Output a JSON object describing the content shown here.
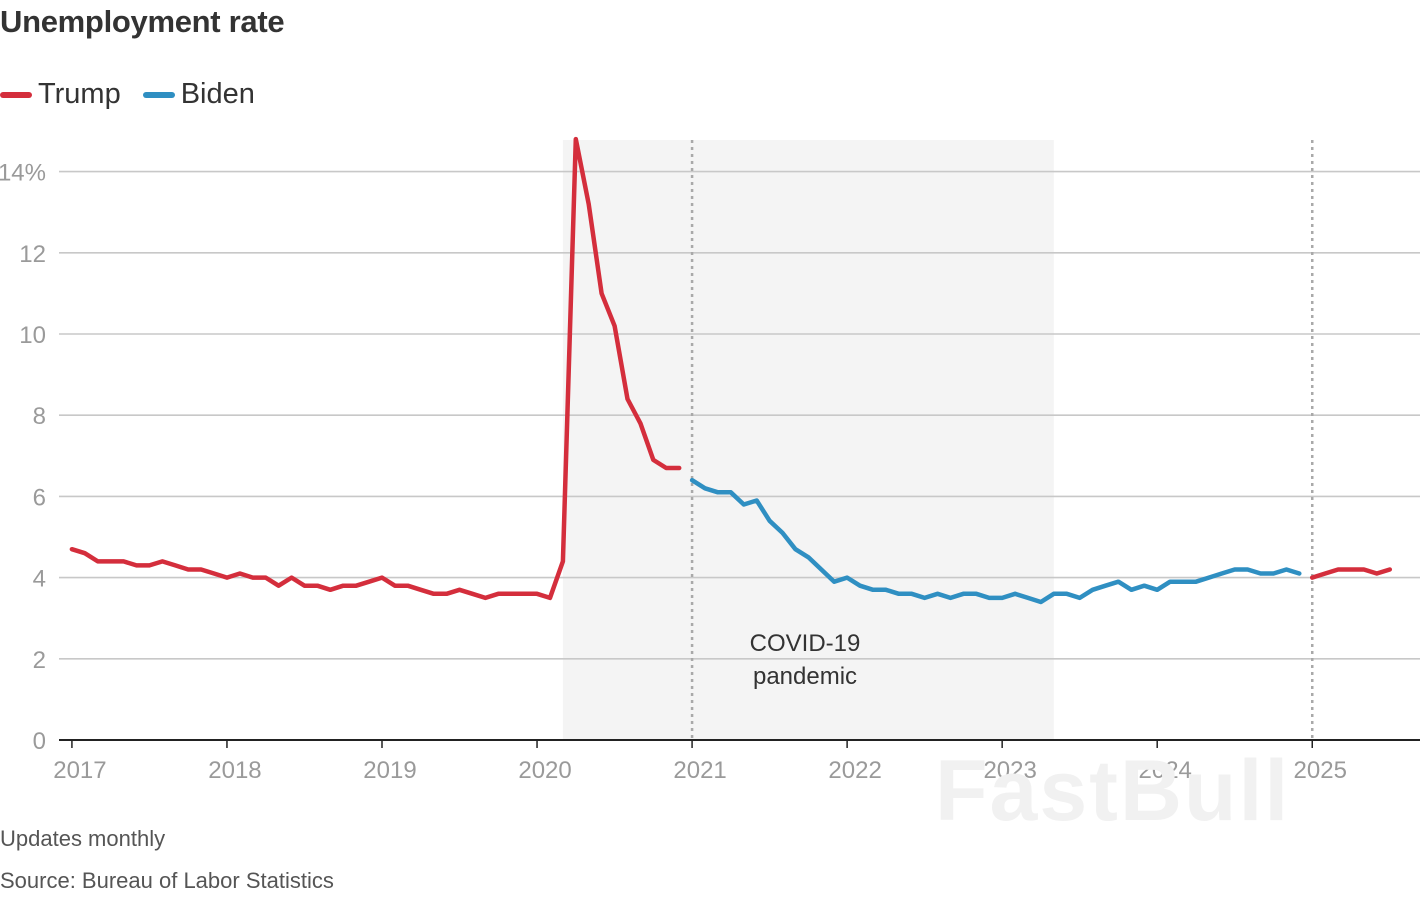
{
  "chart_data": {
    "type": "line",
    "title": "Unemployment rate",
    "xlabel": "",
    "ylabel": "",
    "ylim": [
      0,
      14.8
    ],
    "y_ticks": [
      0,
      2,
      4,
      6,
      8,
      10,
      12,
      14
    ],
    "y_tick_labels": [
      "0",
      "2",
      "4",
      "6",
      "8",
      "10",
      "12",
      "14%"
    ],
    "x_ticks": [
      2017,
      2018,
      2019,
      2020,
      2021,
      2022,
      2023,
      2024,
      2025
    ],
    "x_tick_labels": [
      "2017",
      "2018",
      "2019",
      "2020",
      "2021",
      "2022",
      "2023",
      "2024",
      "2025"
    ],
    "grid": true,
    "legend_placement": "top-left",
    "shaded_region": {
      "start": "2020-03",
      "end": "2023-05",
      "label_line1": "COVID-19",
      "label_line2": "pandemic"
    },
    "reference_lines": [
      "2021-01",
      "2025-01"
    ],
    "series": [
      {
        "name": "Trump",
        "color": "#d42e3c",
        "x": [
          "2017-01",
          "2017-02",
          "2017-03",
          "2017-04",
          "2017-05",
          "2017-06",
          "2017-07",
          "2017-08",
          "2017-09",
          "2017-10",
          "2017-11",
          "2017-12",
          "2018-01",
          "2018-02",
          "2018-03",
          "2018-04",
          "2018-05",
          "2018-06",
          "2018-07",
          "2018-08",
          "2018-09",
          "2018-10",
          "2018-11",
          "2018-12",
          "2019-01",
          "2019-02",
          "2019-03",
          "2019-04",
          "2019-05",
          "2019-06",
          "2019-07",
          "2019-08",
          "2019-09",
          "2019-10",
          "2019-11",
          "2019-12",
          "2020-01",
          "2020-02",
          "2020-03",
          "2020-04",
          "2020-05",
          "2020-06",
          "2020-07",
          "2020-08",
          "2020-09",
          "2020-10",
          "2020-11",
          "2020-12"
        ],
        "values": [
          4.7,
          4.6,
          4.4,
          4.4,
          4.4,
          4.3,
          4.3,
          4.4,
          4.3,
          4.2,
          4.2,
          4.1,
          4.0,
          4.1,
          4.0,
          4.0,
          3.8,
          4.0,
          3.8,
          3.8,
          3.7,
          3.8,
          3.8,
          3.9,
          4.0,
          3.8,
          3.8,
          3.7,
          3.6,
          3.6,
          3.7,
          3.6,
          3.5,
          3.6,
          3.6,
          3.6,
          3.6,
          3.5,
          4.4,
          14.8,
          13.2,
          11.0,
          10.2,
          8.4,
          7.8,
          6.9,
          6.7,
          6.7
        ]
      },
      {
        "name": "Biden",
        "color": "#2f8fc2",
        "x": [
          "2021-01",
          "2021-02",
          "2021-03",
          "2021-04",
          "2021-05",
          "2021-06",
          "2021-07",
          "2021-08",
          "2021-09",
          "2021-10",
          "2021-11",
          "2021-12",
          "2022-01",
          "2022-02",
          "2022-03",
          "2022-04",
          "2022-05",
          "2022-06",
          "2022-07",
          "2022-08",
          "2022-09",
          "2022-10",
          "2022-11",
          "2022-12",
          "2023-01",
          "2023-02",
          "2023-03",
          "2023-04",
          "2023-05",
          "2023-06",
          "2023-07",
          "2023-08",
          "2023-09",
          "2023-10",
          "2023-11",
          "2023-12",
          "2024-01",
          "2024-02",
          "2024-03",
          "2024-04",
          "2024-05",
          "2024-06",
          "2024-07",
          "2024-08",
          "2024-09",
          "2024-10",
          "2024-11",
          "2024-12"
        ],
        "values": [
          6.4,
          6.2,
          6.1,
          6.1,
          5.8,
          5.9,
          5.4,
          5.1,
          4.7,
          4.5,
          4.2,
          3.9,
          4.0,
          3.8,
          3.7,
          3.7,
          3.6,
          3.6,
          3.5,
          3.6,
          3.5,
          3.6,
          3.6,
          3.5,
          3.5,
          3.6,
          3.5,
          3.4,
          3.6,
          3.6,
          3.5,
          3.7,
          3.8,
          3.9,
          3.7,
          3.8,
          3.7,
          3.9,
          3.9,
          3.9,
          4.0,
          4.1,
          4.2,
          4.2,
          4.1,
          4.1,
          4.2,
          4.1
        ]
      },
      {
        "name": "Trump",
        "color": "#d42e3c",
        "x": [
          "2025-01",
          "2025-02",
          "2025-03",
          "2025-04",
          "2025-05",
          "2025-06",
          "2025-07"
        ],
        "values": [
          4.0,
          4.1,
          4.2,
          4.2,
          4.2,
          4.1,
          4.2
        ]
      }
    ]
  },
  "legend": {
    "items": [
      {
        "label": "Trump",
        "color": "#d42e3c"
      },
      {
        "label": "Biden",
        "color": "#2f8fc2"
      }
    ]
  },
  "footer": {
    "note": "Updates monthly",
    "source": "Source: Bureau of Labor Statistics"
  },
  "watermark": "FastBull"
}
